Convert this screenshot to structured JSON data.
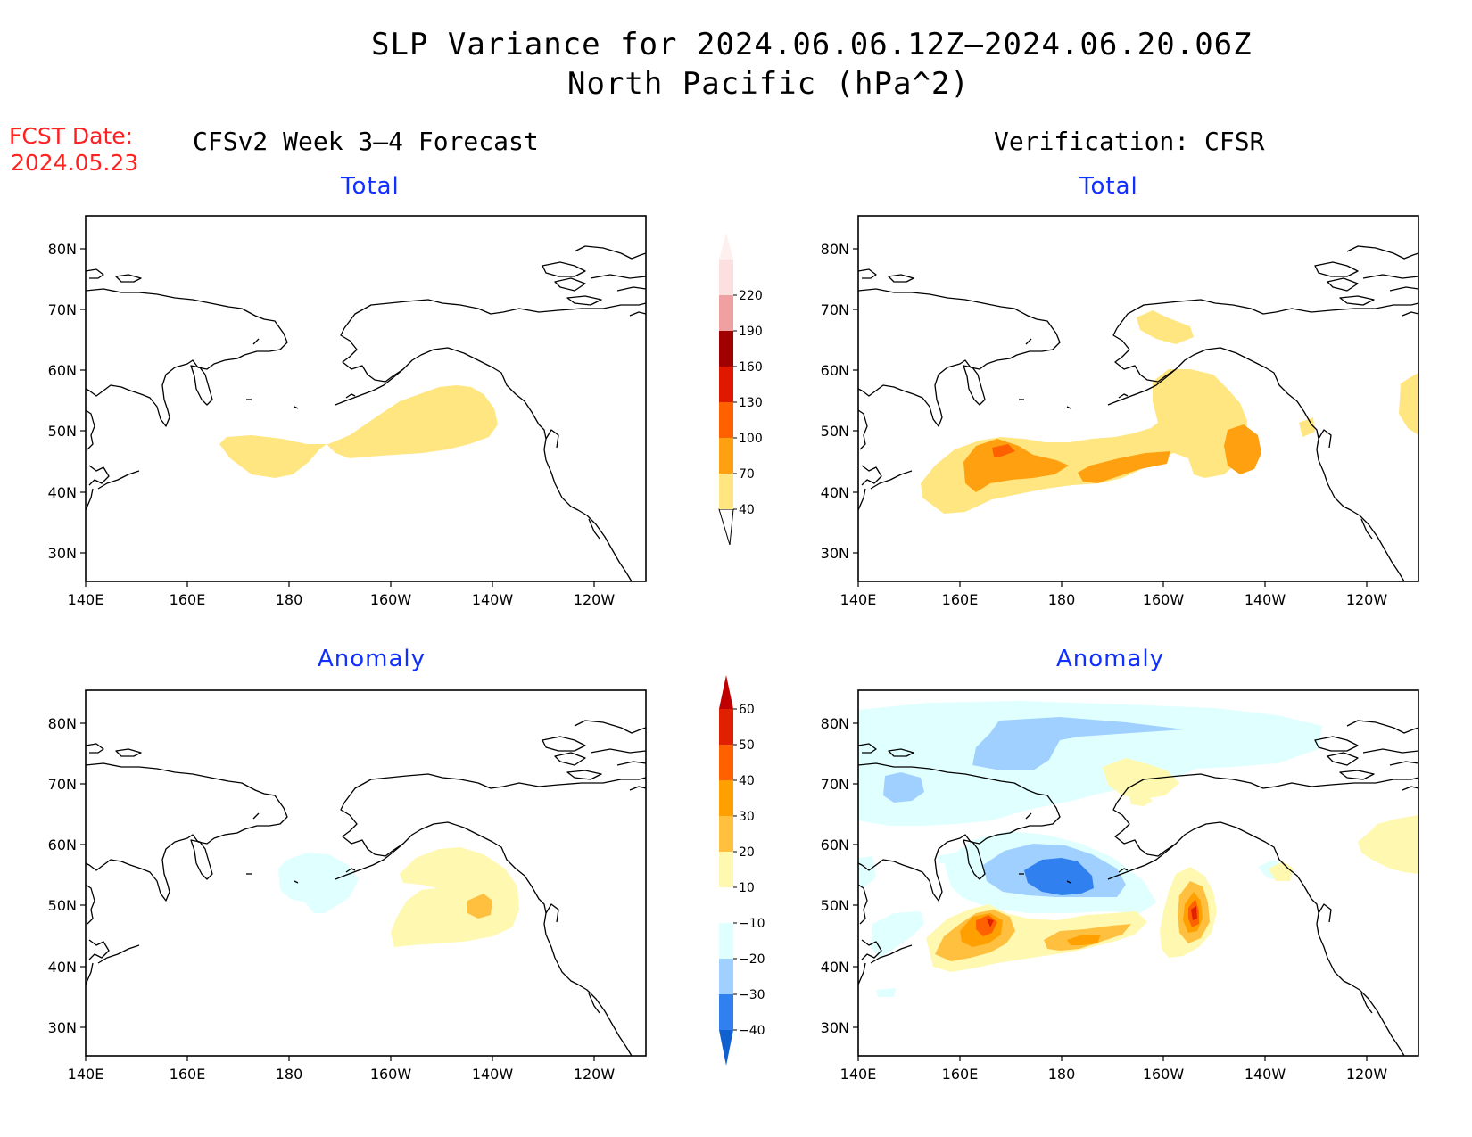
{
  "header": {
    "title_line1": "SLP Variance for 2024.06.06.12Z–2024.06.20.06Z",
    "title_line2": "North Pacific (hPa^2)",
    "fcst_label": "FCST Date:",
    "fcst_date": "2024.05.23",
    "left_column_title": "CFSv2 Week 3–4 Forecast",
    "right_column_title": "Verification: CFSR"
  },
  "panels": {
    "forecast_total": {
      "title": "Total"
    },
    "verification_total": {
      "title": "Total"
    },
    "forecast_anomaly": {
      "title": "Anomaly"
    },
    "verification_anomaly": {
      "title": "Anomaly"
    }
  },
  "map_axes": {
    "lat_labels": [
      "80N",
      "70N",
      "60N",
      "50N",
      "40N",
      "30N"
    ],
    "lon_labels": [
      "140E",
      "160E",
      "180",
      "160W",
      "140W",
      "120W"
    ]
  },
  "colorbars": {
    "total": {
      "levels": [
        "40",
        "70",
        "100",
        "130",
        "160",
        "190",
        "220"
      ],
      "colors": [
        "#ffe680",
        "#ffa010",
        "#ff6000",
        "#e01800",
        "#a00000",
        "#f0a0a0",
        "#fce0e0"
      ]
    },
    "anomaly": {
      "levels": [
        "60",
        "50",
        "40",
        "30",
        "20",
        "10",
        "−10",
        "−20",
        "−30",
        "−40"
      ],
      "colors": [
        "#c00000",
        "#e02000",
        "#ff6000",
        "#ffa000",
        "#ffc040",
        "#fff8b0",
        "#ffffff",
        "#e0ffff",
        "#a0d0ff",
        "#3080f0",
        "#1060d0"
      ]
    }
  },
  "colors": {
    "title_blue": "#1030ff",
    "fcst_red": "#ff2020",
    "var_40_70": "#ffe680",
    "var_70_100": "#ffa010",
    "var_100_130": "#ff6000",
    "anom_pos_10": "#fff8b0",
    "anom_pos_20": "#ffc040",
    "anom_pos_30": "#ffa000",
    "anom_pos_40": "#ff6000",
    "anom_pos_50": "#e02000",
    "anom_neg_10": "#e0ffff",
    "anom_neg_20": "#a0d0ff",
    "anom_neg_30": "#3080f0",
    "anom_neg_40": "#1060d0"
  }
}
